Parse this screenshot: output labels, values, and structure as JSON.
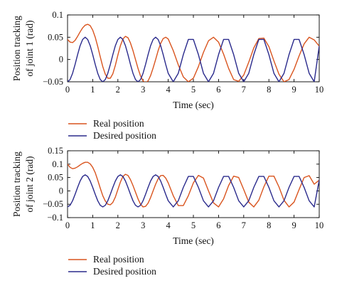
{
  "colors": {
    "real": "#d9541e",
    "desired": "#2a2a8c",
    "axis": "#000000"
  },
  "chart_data": [
    {
      "type": "line",
      "xlabel": "Time (sec)",
      "ylabel_lines": [
        "Position tracking",
        "of joint 1 (rad)"
      ],
      "xlim": [
        0,
        10
      ],
      "ylim": [
        -0.05,
        0.1
      ],
      "grid": false,
      "legend_placement": "below-left",
      "x_ticks": [
        0,
        1,
        2,
        3,
        4,
        5,
        6,
        7,
        8,
        9,
        10
      ],
      "x_tick_labels": [
        "0",
        "1",
        "2",
        "3",
        "4",
        "5",
        "6",
        "7",
        "8",
        "9",
        "10"
      ],
      "y_ticks": [
        -0.05,
        0,
        0.05,
        0.1
      ],
      "y_tick_labels": [
        "−0.05",
        "0",
        "0.05",
        "0.1"
      ],
      "series": [
        {
          "name": "Real position",
          "color_key": "real",
          "x": [
            0,
            0.1,
            0.2,
            0.3,
            0.4,
            0.5,
            0.6,
            0.7,
            0.8,
            0.9,
            1.0,
            1.1,
            1.2,
            1.3,
            1.4,
            1.5,
            1.6,
            1.7,
            1.8,
            1.9,
            2.0,
            2.1,
            2.2,
            2.3,
            2.4,
            2.5,
            2.6,
            2.7,
            2.8,
            2.9,
            3.0,
            3.1,
            3.2,
            3.3,
            3.4,
            3.5,
            3.6,
            3.7,
            3.8,
            3.9,
            4.0,
            4.2,
            4.4,
            4.6,
            4.8,
            5.0,
            5.2,
            5.4,
            5.6,
            5.8,
            6.0,
            6.2,
            6.4,
            6.6,
            6.8,
            7.0,
            7.2,
            7.4,
            7.6,
            7.8,
            8.0,
            8.2,
            8.4,
            8.6,
            8.8,
            9.0,
            9.2,
            9.4,
            9.6,
            9.8,
            10.0
          ],
          "y": [
            0.045,
            0.039,
            0.038,
            0.043,
            0.052,
            0.062,
            0.071,
            0.077,
            0.079,
            0.076,
            0.066,
            0.05,
            0.029,
            0.006,
            -0.016,
            -0.033,
            -0.042,
            -0.042,
            -0.032,
            -0.013,
            0.01,
            0.031,
            0.046,
            0.052,
            0.049,
            0.037,
            0.02,
            0.0,
            -0.02,
            -0.037,
            -0.048,
            -0.052,
            -0.048,
            -0.036,
            -0.019,
            0.0,
            0.02,
            0.036,
            0.047,
            0.05,
            0.046,
            0.02,
            -0.012,
            -0.039,
            -0.05,
            -0.042,
            -0.016,
            0.016,
            0.042,
            0.05,
            0.039,
            0.012,
            -0.02,
            -0.045,
            -0.049,
            -0.035,
            -0.006,
            0.026,
            0.047,
            0.048,
            0.029,
            -0.003,
            -0.033,
            -0.05,
            -0.045,
            -0.022,
            0.008,
            0.035,
            0.05,
            0.044,
            0.03
          ]
        },
        {
          "name": "Desired position",
          "color_key": "desired",
          "x": [
            0,
            0.1,
            0.2,
            0.3,
            0.4,
            0.5,
            0.6,
            0.7,
            0.8,
            0.9,
            1.0,
            1.1,
            1.2,
            1.3,
            1.4,
            1.5,
            1.6,
            1.7,
            1.8,
            1.9,
            2.0,
            2.1,
            2.2,
            2.3,
            2.4,
            2.5,
            2.6,
            2.7,
            2.8,
            2.9,
            3.0,
            3.1,
            3.2,
            3.3,
            3.4,
            3.5,
            3.6,
            3.7,
            3.8,
            3.9,
            4.0,
            4.2,
            4.4,
            4.6,
            4.8,
            5.0,
            5.2,
            5.4,
            5.6,
            5.8,
            6.0,
            6.2,
            6.4,
            6.6,
            6.8,
            7.0,
            7.2,
            7.4,
            7.6,
            7.8,
            8.0,
            8.2,
            8.4,
            8.6,
            8.8,
            9.0,
            9.2,
            9.4,
            9.6,
            9.8,
            10.0
          ],
          "y": [
            -0.05,
            -0.045,
            -0.031,
            -0.011,
            0.011,
            0.031,
            0.045,
            0.05,
            0.045,
            0.031,
            0.011,
            -0.011,
            -0.031,
            -0.045,
            -0.05,
            -0.045,
            -0.031,
            -0.011,
            0.011,
            0.031,
            0.045,
            0.05,
            0.045,
            0.031,
            0.011,
            -0.011,
            -0.031,
            -0.045,
            -0.05,
            -0.045,
            -0.031,
            -0.011,
            0.011,
            0.031,
            0.045,
            0.05,
            0.045,
            0.031,
            0.011,
            -0.011,
            -0.031,
            -0.05,
            -0.031,
            0.011,
            0.045,
            0.045,
            0.011,
            -0.031,
            -0.05,
            -0.031,
            0.011,
            0.045,
            0.045,
            0.011,
            -0.031,
            -0.05,
            -0.031,
            0.011,
            0.045,
            0.045,
            0.011,
            -0.031,
            -0.05,
            -0.031,
            0.011,
            0.045,
            0.045,
            0.011,
            -0.031,
            -0.05,
            0.03
          ]
        }
      ]
    },
    {
      "type": "line",
      "xlabel": "Time (sec)",
      "ylabel_lines": [
        "Position tracking",
        "of joint 2 (rad)"
      ],
      "xlim": [
        0,
        10
      ],
      "ylim": [
        -0.1,
        0.15
      ],
      "grid": false,
      "legend_placement": "below-left",
      "x_ticks": [
        0,
        1,
        2,
        3,
        4,
        5,
        6,
        7,
        8,
        9,
        10
      ],
      "x_tick_labels": [
        "0",
        "1",
        "2",
        "3",
        "4",
        "5",
        "6",
        "7",
        "8",
        "9",
        "10"
      ],
      "y_ticks": [
        -0.1,
        -0.05,
        0,
        0.05,
        0.1,
        0.15
      ],
      "y_tick_labels": [
        "−0.1",
        "−0.05",
        "0",
        "0.05",
        "0.1",
        "0.15"
      ],
      "series": [
        {
          "name": "Real position",
          "color_key": "real",
          "x": [
            0,
            0.1,
            0.2,
            0.3,
            0.4,
            0.5,
            0.6,
            0.7,
            0.8,
            0.9,
            1.0,
            1.1,
            1.2,
            1.3,
            1.4,
            1.5,
            1.6,
            1.7,
            1.8,
            1.9,
            2.0,
            2.1,
            2.2,
            2.3,
            2.4,
            2.5,
            2.6,
            2.7,
            2.8,
            2.9,
            3.0,
            3.1,
            3.2,
            3.3,
            3.4,
            3.5,
            3.6,
            3.7,
            3.8,
            3.9,
            4.0,
            4.2,
            4.4,
            4.6,
            4.8,
            5.0,
            5.2,
            5.4,
            5.6,
            5.8,
            6.0,
            6.2,
            6.4,
            6.6,
            6.8,
            7.0,
            7.2,
            7.4,
            7.6,
            7.8,
            8.0,
            8.2,
            8.4,
            8.6,
            8.8,
            9.0,
            9.2,
            9.4,
            9.6,
            9.8,
            10.0
          ],
          "y": [
            0.1,
            0.088,
            0.083,
            0.085,
            0.09,
            0.097,
            0.103,
            0.107,
            0.107,
            0.101,
            0.088,
            0.068,
            0.04,
            0.01,
            -0.018,
            -0.038,
            -0.05,
            -0.052,
            -0.043,
            -0.023,
            0.005,
            0.033,
            0.054,
            0.062,
            0.058,
            0.042,
            0.02,
            -0.005,
            -0.03,
            -0.05,
            -0.06,
            -0.058,
            -0.046,
            -0.025,
            0.0,
            0.025,
            0.045,
            0.057,
            0.058,
            0.048,
            0.03,
            -0.018,
            -0.055,
            -0.055,
            -0.018,
            0.03,
            0.058,
            0.048,
            0.0,
            -0.045,
            -0.06,
            -0.03,
            0.02,
            0.055,
            0.05,
            0.005,
            -0.042,
            -0.06,
            -0.035,
            0.015,
            0.055,
            0.055,
            0.015,
            -0.035,
            -0.06,
            -0.042,
            0.005,
            0.05,
            0.057,
            0.025,
            0.04
          ]
        },
        {
          "name": "Desired position",
          "color_key": "desired",
          "x": [
            0,
            0.1,
            0.2,
            0.3,
            0.4,
            0.5,
            0.6,
            0.7,
            0.8,
            0.9,
            1.0,
            1.1,
            1.2,
            1.3,
            1.4,
            1.5,
            1.6,
            1.7,
            1.8,
            1.9,
            2.0,
            2.1,
            2.2,
            2.3,
            2.4,
            2.5,
            2.6,
            2.7,
            2.8,
            2.9,
            3.0,
            3.1,
            3.2,
            3.3,
            3.4,
            3.5,
            3.6,
            3.7,
            3.8,
            3.9,
            4.0,
            4.2,
            4.4,
            4.6,
            4.8,
            5.0,
            5.2,
            5.4,
            5.6,
            5.8,
            6.0,
            6.2,
            6.4,
            6.6,
            6.8,
            7.0,
            7.2,
            7.4,
            7.6,
            7.8,
            8.0,
            8.2,
            8.4,
            8.6,
            8.8,
            9.0,
            9.2,
            9.4,
            9.6,
            9.8,
            10.0
          ],
          "y": [
            -0.06,
            -0.054,
            -0.037,
            -0.013,
            0.013,
            0.037,
            0.054,
            0.06,
            0.054,
            0.037,
            0.013,
            -0.013,
            -0.037,
            -0.054,
            -0.06,
            -0.054,
            -0.037,
            -0.013,
            0.013,
            0.037,
            0.054,
            0.06,
            0.054,
            0.037,
            0.013,
            -0.013,
            -0.037,
            -0.054,
            -0.06,
            -0.054,
            -0.037,
            -0.013,
            0.013,
            0.037,
            0.054,
            0.06,
            0.054,
            0.037,
            0.013,
            -0.013,
            -0.037,
            -0.06,
            -0.037,
            0.013,
            0.054,
            0.054,
            0.013,
            -0.037,
            -0.06,
            -0.037,
            0.013,
            0.054,
            0.054,
            0.013,
            -0.037,
            -0.06,
            -0.037,
            0.013,
            0.054,
            0.054,
            0.013,
            -0.037,
            -0.06,
            -0.037,
            0.013,
            0.054,
            0.054,
            0.013,
            -0.037,
            -0.06,
            0.04
          ]
        }
      ]
    }
  ]
}
